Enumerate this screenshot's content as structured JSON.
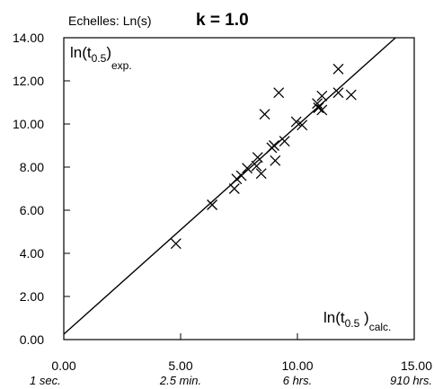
{
  "chart_data": {
    "type": "scatter",
    "scale_note": "Echelles: Ln(s)",
    "parameter_label": "k = 1.0",
    "ylabel": {
      "main": "ln(t",
      "sub": "0.5",
      "close": ")",
      "suffix": "exp."
    },
    "xlabel": {
      "main": "ln(t",
      "sub": "0.5",
      "close": " )",
      "suffix": "calc."
    },
    "xlim": [
      0,
      15
    ],
    "ylim": [
      0,
      14
    ],
    "x_ticks": [
      {
        "value": 0,
        "label": "0.00",
        "time": "1 sec."
      },
      {
        "value": 5,
        "label": "5.00",
        "time": "2.5 min."
      },
      {
        "value": 10,
        "label": "10.00",
        "time": "6 hrs."
      },
      {
        "value": 15,
        "label": "15.00",
        "time": "910 hrs."
      }
    ],
    "y_ticks": [
      {
        "value": 0,
        "label": "0.00"
      },
      {
        "value": 2,
        "label": "2.00"
      },
      {
        "value": 4,
        "label": "4.00"
      },
      {
        "value": 6,
        "label": "6.00"
      },
      {
        "value": 8,
        "label": "8.00"
      },
      {
        "value": 10,
        "label": "10.00"
      },
      {
        "value": 12,
        "label": "12.00"
      },
      {
        "value": 14,
        "label": "14.00"
      }
    ],
    "fit_line": {
      "x": [
        0,
        14.2
      ],
      "y": [
        0.25,
        14
      ]
    },
    "points": [
      {
        "x": 4.8,
        "y": 4.45
      },
      {
        "x": 6.35,
        "y": 6.25
      },
      {
        "x": 7.3,
        "y": 7.0
      },
      {
        "x": 7.4,
        "y": 7.45
      },
      {
        "x": 7.6,
        "y": 7.6
      },
      {
        "x": 7.85,
        "y": 7.95
      },
      {
        "x": 8.25,
        "y": 8.05
      },
      {
        "x": 8.45,
        "y": 7.7
      },
      {
        "x": 8.3,
        "y": 8.45
      },
      {
        "x": 8.6,
        "y": 10.45
      },
      {
        "x": 8.9,
        "y": 8.9
      },
      {
        "x": 9.0,
        "y": 9.0
      },
      {
        "x": 9.05,
        "y": 8.3
      },
      {
        "x": 9.2,
        "y": 11.45
      },
      {
        "x": 9.45,
        "y": 9.2
      },
      {
        "x": 9.95,
        "y": 10.1
      },
      {
        "x": 10.2,
        "y": 9.95
      },
      {
        "x": 10.85,
        "y": 10.95
      },
      {
        "x": 10.9,
        "y": 10.75
      },
      {
        "x": 11.05,
        "y": 11.3
      },
      {
        "x": 11.05,
        "y": 10.65
      },
      {
        "x": 11.75,
        "y": 12.55
      },
      {
        "x": 11.75,
        "y": 11.45
      },
      {
        "x": 12.3,
        "y": 11.35
      }
    ]
  }
}
